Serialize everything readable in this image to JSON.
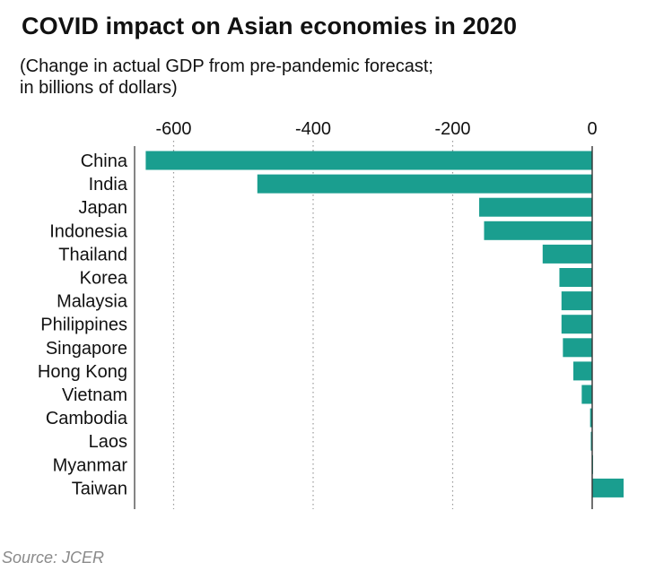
{
  "title": "COVID impact on Asian economies in 2020",
  "subtitle": "(Change in actual GDP from pre-pandemic forecast;\n in billions of dollars)",
  "source": "Source: JCER",
  "colors": {
    "bar": "#1a9e8f",
    "grid": "#9a9a9a",
    "axis": "#333333"
  },
  "chart_data": {
    "type": "bar",
    "orientation": "horizontal",
    "title": "COVID impact on Asian economies in 2020",
    "subtitle": "(Change in actual GDP from pre-pandemic forecast; in billions of dollars)",
    "categories": [
      "China",
      "India",
      "Japan",
      "Indonesia",
      "Thailand",
      "Korea",
      "Malaysia",
      "Philippines",
      "Singapore",
      "Hong Kong",
      "Vietnam",
      "Cambodia",
      "Laos",
      "Myanmar",
      "Taiwan"
    ],
    "values": [
      -640,
      -480,
      -162,
      -155,
      -71,
      -47,
      -44,
      -44,
      -42,
      -27,
      -15,
      -3,
      -2,
      1,
      45
    ],
    "xlim": [
      -655,
      45
    ],
    "xticks": [
      -600,
      -400,
      -200,
      0
    ],
    "xtick_labels": [
      "-600",
      "-400",
      "-200",
      "0"
    ],
    "grid": true,
    "grid_style": "dotted vertical",
    "axis_position": "top"
  }
}
